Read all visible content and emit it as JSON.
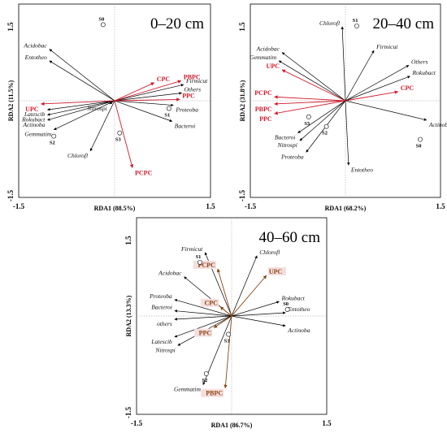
{
  "chart_data": [
    {
      "type": "scatter",
      "title": "0–20 cm",
      "xlabel": "RDA1 (88.5%)",
      "ylabel": "RDA2 (11.5%)",
      "xlim": [
        -1.5,
        1.5
      ],
      "ylim": [
        -1.5,
        1.5
      ],
      "xticks": [
        "-1.5",
        "1.5"
      ],
      "yticks": [
        "1.5",
        "-1.5"
      ],
      "env_style": "red",
      "species": [
        {
          "name": "Acidobac",
          "x": -1.02,
          "y": 0.8
        },
        {
          "name": "Entotheo",
          "x": -1.02,
          "y": 0.62
        },
        {
          "name": "Latescib",
          "x": -1.05,
          "y": -0.14
        },
        {
          "name": "Rokubact",
          "x": -1.05,
          "y": -0.22
        },
        {
          "name": "Actinoba",
          "x": -1.05,
          "y": -0.3
        },
        {
          "name": "Gemmatim",
          "x": -0.95,
          "y": -0.45
        },
        {
          "name": "Chlorofl",
          "x": -0.38,
          "y": -0.78
        },
        {
          "name": "Nitrospi",
          "x": -0.08,
          "y": -0.05
        },
        {
          "name": "Bacteroi",
          "x": 0.9,
          "y": -0.32
        },
        {
          "name": "Proteoba",
          "x": 0.92,
          "y": -0.07
        },
        {
          "name": "Others",
          "x": 1.05,
          "y": 0.12
        },
        {
          "name": "Firmicut",
          "x": 1.08,
          "y": 0.25
        }
      ],
      "env": [
        {
          "name": "UPC",
          "x": -1.15,
          "y": -0.05
        },
        {
          "name": "PBPC",
          "x": 1.04,
          "y": 0.31
        },
        {
          "name": "CPC",
          "x": 0.62,
          "y": 0.28
        },
        {
          "name": "PPC",
          "x": 1.02,
          "y": 0.02
        },
        {
          "name": "PCPC",
          "x": 0.28,
          "y": -1.04
        }
      ],
      "sites": [
        {
          "name": "S0",
          "x": -0.18,
          "y": 1.18
        },
        {
          "name": "S1",
          "x": 0.85,
          "y": -0.12
        },
        {
          "name": "S2",
          "x": -0.95,
          "y": -0.55
        },
        {
          "name": "S3",
          "x": 0.08,
          "y": -0.5
        }
      ]
    },
    {
      "type": "scatter",
      "title": "20–40 cm",
      "xlabel": "RDA1 (68.2%)",
      "ylabel": "RDA2 (31.8%)",
      "xlim": [
        -1.5,
        1.5
      ],
      "ylim": [
        -1.5,
        1.5
      ],
      "xticks": [
        "-1.5",
        "1.5"
      ],
      "yticks": [
        "1.5",
        "-1.5"
      ],
      "env_style": "red",
      "species": [
        {
          "name": "Chlorofl",
          "x": -0.05,
          "y": 1.15
        },
        {
          "name": "Firmicut",
          "x": 0.45,
          "y": 0.78
        },
        {
          "name": "Acidobac",
          "x": -1.0,
          "y": 0.75
        },
        {
          "name": "Gemmatim",
          "x": -1.05,
          "y": 0.62
        },
        {
          "name": "Others",
          "x": 1.0,
          "y": 0.55
        },
        {
          "name": "Rokubact",
          "x": 1.02,
          "y": 0.38
        },
        {
          "name": "Actinoba",
          "x": 1.28,
          "y": -0.3
        },
        {
          "name": "Bacteroi",
          "x": -0.75,
          "y": -0.5
        },
        {
          "name": "Nitrospi",
          "x": -0.72,
          "y": -0.62
        },
        {
          "name": "Proteoba",
          "x": -0.62,
          "y": -0.8
        },
        {
          "name": "Entotheo",
          "x": 0.05,
          "y": -1.0
        }
      ],
      "env": [
        {
          "name": "UPC",
          "x": -1.0,
          "y": 0.48
        },
        {
          "name": "PCPC",
          "x": -1.12,
          "y": 0.06
        },
        {
          "name": "PBPC",
          "x": -1.12,
          "y": -0.05
        },
        {
          "name": "PPC",
          "x": -1.12,
          "y": -0.2
        },
        {
          "name": "CPC",
          "x": 0.83,
          "y": 0.14
        }
      ],
      "sites": [
        {
          "name": "S0",
          "x": 1.18,
          "y": -0.6
        },
        {
          "name": "S1",
          "x": 0.18,
          "y": 1.16
        },
        {
          "name": "S2",
          "x": -0.3,
          "y": -0.4
        },
        {
          "name": "S3",
          "x": -0.58,
          "y": -0.25
        }
      ]
    },
    {
      "type": "scatter",
      "title": "40–60 cm",
      "xlabel": "RDA1 (86.7%)",
      "ylabel": "RDA2 (13.3%)",
      "xlim": [
        -1.5,
        1.5
      ],
      "ylim": [
        -1.5,
        1.5
      ],
      "xticks": [
        "-1.5",
        "1.5"
      ],
      "yticks": [
        "1.5",
        "-1.5"
      ],
      "env_style": "brown",
      "species": [
        {
          "name": "Firmicut",
          "x": -0.42,
          "y": 0.97
        },
        {
          "name": "Chlorofl",
          "x": 0.4,
          "y": 0.92
        },
        {
          "name": "Acidobac",
          "x": -0.75,
          "y": 0.6
        },
        {
          "name": "Proteoba",
          "x": -0.9,
          "y": 0.25
        },
        {
          "name": "Bacteroi",
          "x": -0.9,
          "y": 0.08
        },
        {
          "name": "others",
          "x": -0.9,
          "y": -0.05
        },
        {
          "name": "Rokubact",
          "x": 0.75,
          "y": 0.22
        },
        {
          "name": "Entotheo",
          "x": 0.85,
          "y": 0.05
        },
        {
          "name": "Actinoba",
          "x": 0.85,
          "y": -0.15
        },
        {
          "name": "Latescib",
          "x": -0.9,
          "y": -0.32
        },
        {
          "name": "Nitrospi",
          "x": -0.85,
          "y": -0.45
        },
        {
          "name": "Gemmatim",
          "x": -0.45,
          "y": -1.05
        }
      ],
      "env": [
        {
          "name": "PCPC",
          "x": -0.22,
          "y": 0.72
        },
        {
          "name": "UPC",
          "x": 0.55,
          "y": 0.62
        },
        {
          "name": "CPC",
          "x": -0.18,
          "y": 0.14
        },
        {
          "name": "PPC",
          "x": -0.28,
          "y": -0.18
        },
        {
          "name": "PBPC",
          "x": -0.1,
          "y": -1.1
        }
      ],
      "sites": [
        {
          "name": "S0",
          "x": 0.88,
          "y": 0.1
        },
        {
          "name": "S1",
          "x": -0.5,
          "y": 0.82
        },
        {
          "name": "S2",
          "x": -0.4,
          "y": -0.88
        },
        {
          "name": "S3",
          "x": -0.05,
          "y": -0.28
        }
      ]
    }
  ]
}
